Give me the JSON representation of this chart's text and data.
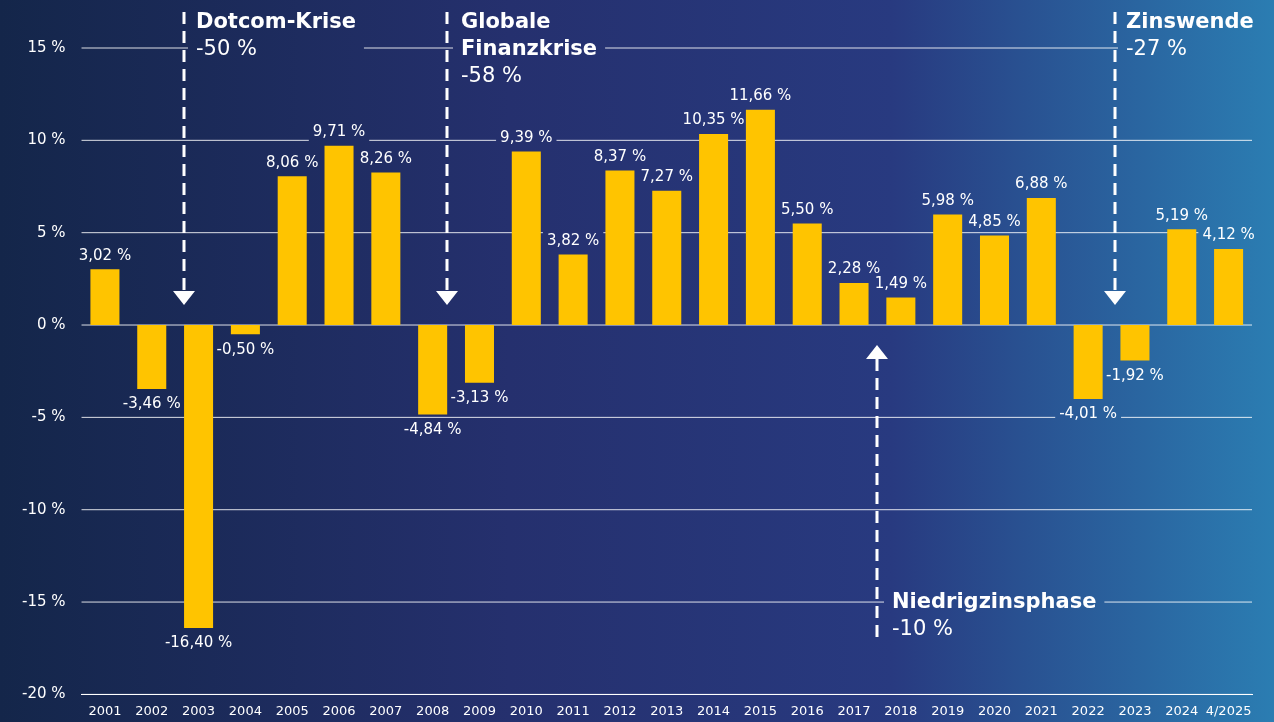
{
  "chart_data": {
    "type": "bar",
    "categories": [
      "2001",
      "2002",
      "2003",
      "2004",
      "2005",
      "2006",
      "2007",
      "2008",
      "2009",
      "2010",
      "2011",
      "2012",
      "2013",
      "2014",
      "2015",
      "2016",
      "2017",
      "2018",
      "2019",
      "2020",
      "2021",
      "2022",
      "2023",
      "2024",
      "4/2025"
    ],
    "values": [
      3.02,
      -3.46,
      -16.4,
      -0.5,
      8.06,
      9.71,
      8.26,
      -4.84,
      -3.13,
      9.39,
      3.82,
      8.37,
      7.27,
      10.35,
      11.66,
      5.5,
      2.28,
      1.49,
      5.98,
      4.85,
      6.88,
      -4.01,
      -1.92,
      5.19,
      4.12
    ],
    "value_labels": [
      "3,02 %",
      "-3,46 %",
      "-16,40 %",
      "-0,50 %",
      "8,06 %",
      "9,71 %",
      "8,26 %",
      "-4,84 %",
      "-3,13 %",
      "9,39 %",
      "3,82 %",
      "8,37 %",
      "7,27 %",
      "10,35 %",
      "11,66 %",
      "5,50 %",
      "2,28 %",
      "1,49 %",
      "5,98 %",
      "4,85 %",
      "6,88 %",
      "-4,01 %",
      "-1,92 %",
      "5,19 %",
      "4,12 %"
    ],
    "color": "#ffc400",
    "ylim": [
      -20,
      15
    ],
    "yticks": [
      {
        "value": -20,
        "label": "-20 %"
      },
      {
        "value": -15,
        "label": "-15 %"
      },
      {
        "value": -10,
        "label": "-10 %"
      },
      {
        "value": -5,
        "label": "-5 %"
      },
      {
        "value": 0,
        "label": "0 %"
      },
      {
        "value": 5,
        "label": "5 %"
      },
      {
        "value": 10,
        "label": "10 %"
      },
      {
        "value": 15,
        "label": "15 %"
      }
    ],
    "grid": "y",
    "annotations": [
      "Dotcom-Krise\n-50 %",
      "Globale\nFinanzkrise\n-58 %",
      "Niedrigzinsphase\n-10 %",
      "Zinswende\n-27 %"
    ]
  }
}
